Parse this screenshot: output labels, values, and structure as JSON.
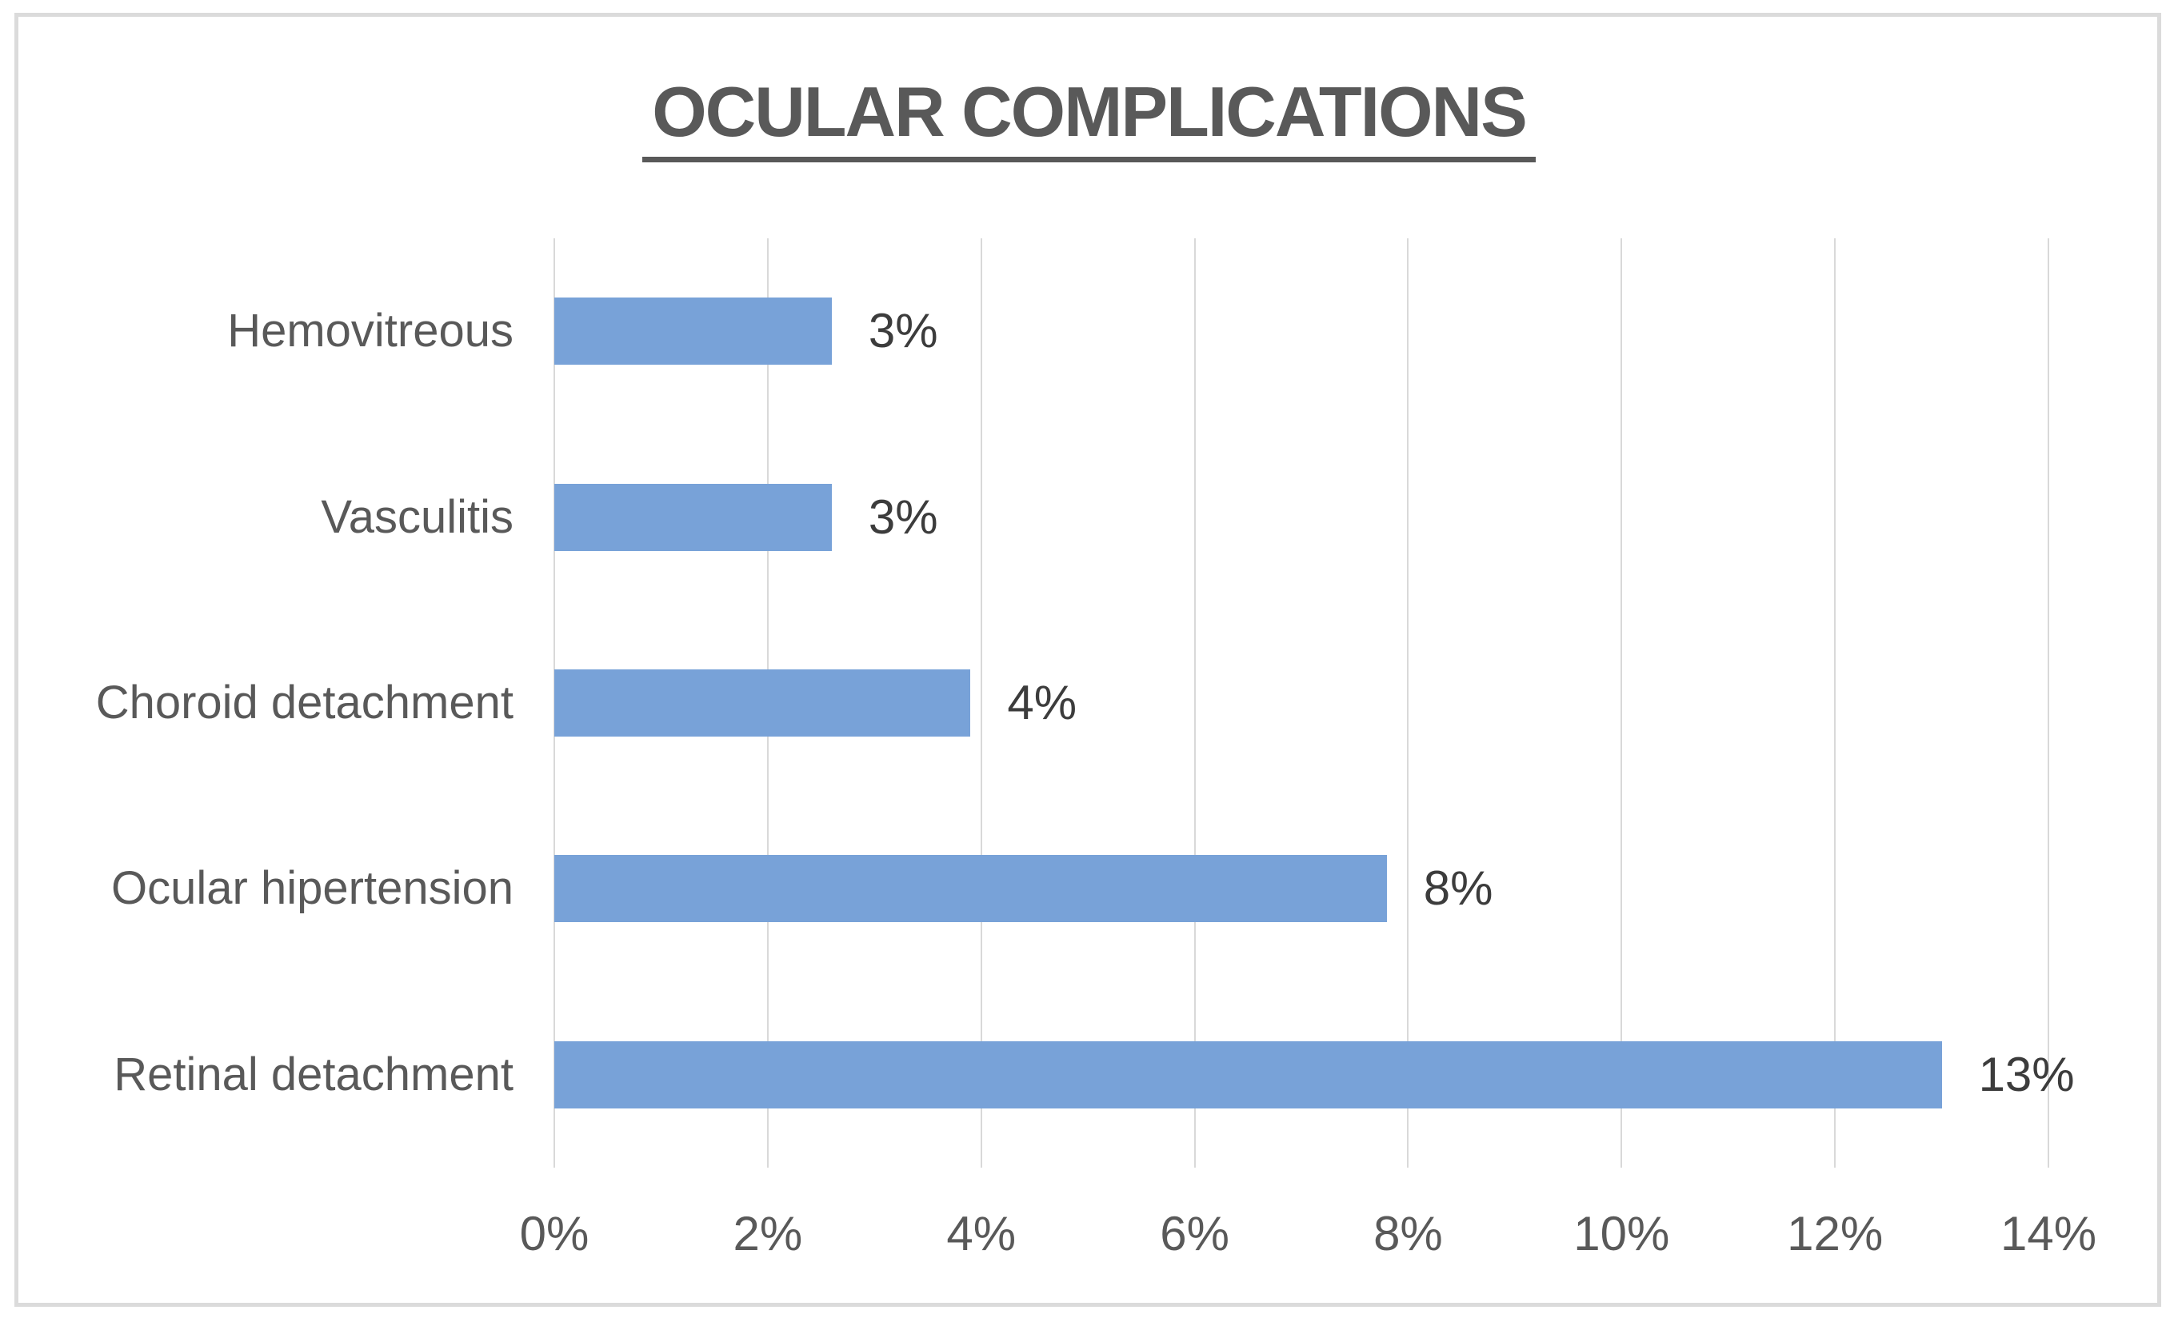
{
  "chart_data": {
    "type": "bar",
    "orientation": "horizontal",
    "title": "OCULAR COMPLICATIONS",
    "categories": [
      "Hemovitreous",
      "Vasculitis",
      "Choroid detachment",
      "Ocular hipertension",
      "Retinal detachment"
    ],
    "values": [
      3,
      3,
      4,
      8,
      13
    ],
    "value_labels": [
      "3%",
      "3%",
      "4%",
      "8%",
      "13%"
    ],
    "drawn_values_pct": [
      2.6,
      2.6,
      3.9,
      7.8,
      13.0
    ],
    "xlabel": "",
    "ylabel": "",
    "x_axis": {
      "tick_labels": [
        "0%",
        "2%",
        "4%",
        "6%",
        "8%",
        "10%",
        "12%",
        "14%"
      ],
      "tick_values": [
        0,
        2,
        4,
        6,
        8,
        10,
        12,
        14
      ],
      "min": 0,
      "max": 14
    },
    "grid": true,
    "legend": "none",
    "colors": {
      "bar": "#78a2d8",
      "title": "#595959",
      "category_label": "#595959",
      "data_label": "#3c3c3c",
      "axis_label": "#595959",
      "gridline": "#d9d9d9",
      "frame_border": "#dbdbdb",
      "background": "#ffffff"
    }
  }
}
